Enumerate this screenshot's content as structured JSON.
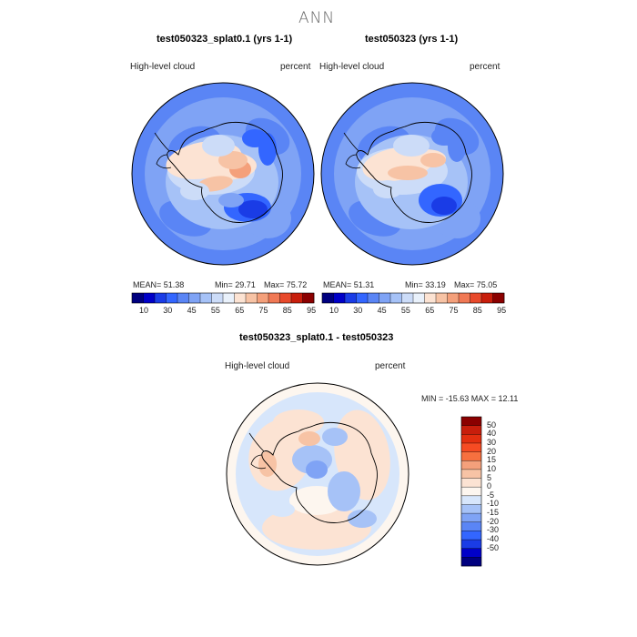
{
  "page": {
    "title": "ANN"
  },
  "chart_data": [
    {
      "type": "heatmap",
      "projection": "south polar stereographic",
      "title": "test050323_splat0.1 (yrs 1-1)",
      "left_label": "High-level cloud",
      "right_label": "percent",
      "stats": {
        "mean_label": "MEAN=",
        "mean": "51.38",
        "min_label": "Min=",
        "min": "29.71",
        "max_label": "Max=",
        "max": "75.72"
      },
      "colorbar": {
        "orientation": "horizontal",
        "levels": [
          10,
          20,
          30,
          40,
          45,
          50,
          55,
          60,
          65,
          70,
          75,
          80,
          85,
          90,
          95
        ],
        "tick_labels": [
          "10",
          "30",
          "45",
          "55",
          "65",
          "75",
          "85",
          "95"
        ],
        "colors": [
          "#00007f",
          "#0000c8",
          "#1a3ce6",
          "#3366ff",
          "#5a85f5",
          "#7fa3f5",
          "#a6c2f7",
          "#ccdcf8",
          "#e9f1fb",
          "#fce3d3",
          "#f7c3a5",
          "#f4a07b",
          "#f07955",
          "#e84a2c",
          "#c81e0c",
          "#8b0000"
        ]
      }
    },
    {
      "type": "heatmap",
      "projection": "south polar stereographic",
      "title": "test050323 (yrs 1-1)",
      "left_label": "High-level cloud",
      "right_label": "percent",
      "stats": {
        "mean_label": "MEAN=",
        "mean": "51.31",
        "min_label": "Min=",
        "min": "33.19",
        "max_label": "Max=",
        "max": "75.05"
      },
      "colorbar": {
        "orientation": "horizontal",
        "levels": [
          10,
          20,
          30,
          40,
          45,
          50,
          55,
          60,
          65,
          70,
          75,
          80,
          85,
          90,
          95
        ],
        "tick_labels": [
          "10",
          "30",
          "45",
          "55",
          "65",
          "75",
          "85",
          "95"
        ],
        "colors": [
          "#00007f",
          "#0000c8",
          "#1a3ce6",
          "#3366ff",
          "#5a85f5",
          "#7fa3f5",
          "#a6c2f7",
          "#ccdcf8",
          "#e9f1fb",
          "#fce3d3",
          "#f7c3a5",
          "#f4a07b",
          "#f07955",
          "#e84a2c",
          "#c81e0c",
          "#8b0000"
        ]
      }
    },
    {
      "type": "heatmap",
      "projection": "south polar stereographic",
      "title": "test050323_splat0.1 - test050323",
      "left_label": "High-level cloud",
      "right_label": "percent",
      "stats": {
        "text": "MIN = -15.63  MAX =   12.11"
      },
      "colorbar": {
        "orientation": "vertical",
        "tick_labels": [
          "50",
          "40",
          "30",
          "20",
          "15",
          "10",
          "5",
          "0",
          "-5",
          "-10",
          "-15",
          "-20",
          "-30",
          "-40",
          "-50"
        ],
        "colors": [
          "#8b0000",
          "#c81e0c",
          "#e32f10",
          "#f64b23",
          "#f7703f",
          "#f4a07b",
          "#f7c3a5",
          "#fce3d3",
          "#fdf6ef",
          "#d7e6fb",
          "#a6c2f7",
          "#7fa3f5",
          "#5a85f5",
          "#3366ff",
          "#1a3ce6",
          "#0000c8",
          "#00007f"
        ]
      }
    }
  ]
}
